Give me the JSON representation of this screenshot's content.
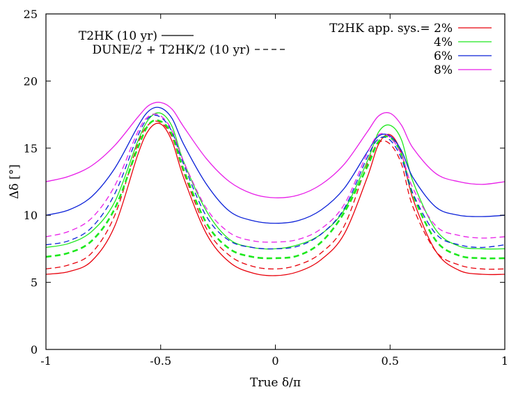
{
  "chart_data": {
    "type": "line",
    "xlabel": "True δ/π",
    "ylabel": "Δδ [°]",
    "xlim": [
      -1,
      1
    ],
    "ylim": [
      0,
      25
    ],
    "x_ticks": [
      -1,
      -0.5,
      0,
      0.5,
      1
    ],
    "x_tick_labels": [
      "-1",
      "-0.5",
      "0",
      "0.5",
      "1"
    ],
    "y_ticks": [
      0,
      5,
      10,
      15,
      20,
      25
    ],
    "y_tick_labels": [
      "0",
      "5",
      "10",
      "15",
      "20",
      "25"
    ],
    "grid": false,
    "legend_style": {
      "position": "top-left",
      "entries": [
        {
          "label": "T2HK (10 yr)",
          "dash": "solid"
        },
        {
          "label": "DUNE/2 + T2HK/2 (10 yr)",
          "dash": "dashed"
        }
      ]
    },
    "legend_sys": {
      "position": "top-right",
      "entries": [
        {
          "label": "T2HK app. sys.= 2%",
          "color": "#e8000b"
        },
        {
          "label": "4%",
          "color": "#1ee81e"
        },
        {
          "label": "6%",
          "color": "#0a20d8"
        },
        {
          "label": "8%",
          "color": "#e81ee8"
        }
      ]
    },
    "x": [
      -1,
      -0.9,
      -0.8,
      -0.7,
      -0.6,
      -0.55,
      -0.5,
      -0.45,
      -0.4,
      -0.3,
      -0.2,
      -0.1,
      0,
      0.1,
      0.2,
      0.3,
      0.4,
      0.45,
      0.5,
      0.55,
      0.6,
      0.7,
      0.8,
      0.9,
      1
    ],
    "series": [
      {
        "color": "#e8000b",
        "dash": "solid",
        "width": 1.3,
        "values": [
          5.6,
          5.8,
          6.6,
          9.2,
          14.5,
          16.4,
          16.8,
          15.5,
          12.8,
          8.6,
          6.5,
          5.7,
          5.5,
          5.8,
          6.7,
          8.6,
          12.8,
          15.3,
          16.0,
          14.6,
          11.2,
          7.3,
          5.9,
          5.6,
          5.6
        ]
      },
      {
        "color": "#e8000b",
        "dash": "dashed",
        "width": 1.3,
        "values": [
          6.0,
          6.3,
          7.2,
          10.0,
          15.3,
          16.8,
          16.9,
          15.8,
          13.2,
          9.0,
          7.0,
          6.2,
          6.0,
          6.3,
          7.2,
          9.2,
          13.8,
          15.4,
          15.3,
          13.8,
          10.6,
          7.3,
          6.3,
          6.0,
          6.0
        ]
      },
      {
        "color": "#1ee81e",
        "dash": "solid",
        "width": 1.3,
        "values": [
          7.6,
          7.9,
          8.8,
          11.0,
          15.5,
          17.2,
          17.6,
          16.6,
          14.0,
          10.3,
          8.2,
          7.6,
          7.5,
          7.8,
          8.6,
          10.4,
          14.0,
          16.2,
          16.7,
          15.6,
          12.5,
          8.9,
          7.7,
          7.5,
          7.5
        ]
      },
      {
        "color": "#1ee81e",
        "dash": "dashed",
        "width": 2.6,
        "values": [
          6.9,
          7.2,
          8.1,
          10.5,
          15.0,
          16.8,
          17.0,
          16.0,
          13.4,
          9.4,
          7.5,
          6.9,
          6.8,
          7.0,
          8.0,
          10.2,
          13.6,
          15.5,
          15.8,
          14.5,
          11.5,
          8.1,
          7.0,
          6.8,
          6.8
        ]
      },
      {
        "color": "#0a20d8",
        "dash": "solid",
        "width": 1.3,
        "values": [
          10.0,
          10.4,
          11.4,
          13.5,
          16.6,
          17.8,
          18.0,
          17.2,
          15.3,
          12.3,
          10.3,
          9.6,
          9.4,
          9.6,
          10.4,
          12.0,
          14.7,
          15.9,
          15.9,
          14.8,
          12.8,
          10.6,
          10.0,
          9.9,
          10.0
        ]
      },
      {
        "color": "#0a20d8",
        "dash": "dashed",
        "width": 1.3,
        "values": [
          7.8,
          8.1,
          9.1,
          11.6,
          15.9,
          17.3,
          17.3,
          16.2,
          13.8,
          9.9,
          8.1,
          7.6,
          7.5,
          7.7,
          8.6,
          10.5,
          14.3,
          15.7,
          15.6,
          14.2,
          11.6,
          8.6,
          7.8,
          7.6,
          7.8
        ]
      },
      {
        "color": "#e81ee8",
        "dash": "solid",
        "width": 1.3,
        "values": [
          12.5,
          12.9,
          13.7,
          15.2,
          17.3,
          18.2,
          18.4,
          17.9,
          16.6,
          14.2,
          12.5,
          11.6,
          11.3,
          11.5,
          12.3,
          13.8,
          16.2,
          17.4,
          17.6,
          16.7,
          15.0,
          13.1,
          12.5,
          12.3,
          12.5
        ]
      },
      {
        "color": "#e81ee8",
        "dash": "dashed",
        "width": 1.3,
        "values": [
          8.4,
          8.8,
          9.8,
          12.2,
          16.2,
          17.4,
          17.4,
          16.3,
          14.0,
          10.5,
          8.7,
          8.1,
          8.0,
          8.2,
          9.0,
          10.8,
          14.6,
          16.0,
          15.8,
          14.5,
          12.0,
          9.2,
          8.5,
          8.3,
          8.4
        ]
      }
    ]
  }
}
